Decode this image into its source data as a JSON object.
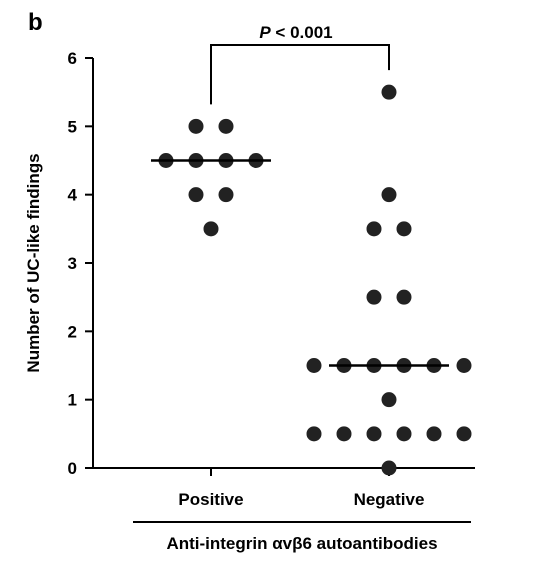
{
  "chart_data": {
    "type": "scatter",
    "panel_label": "b",
    "ylabel": "Number of UC-like findings",
    "xlabel": "",
    "ylim": [
      0,
      6
    ],
    "yticks": [
      "0",
      "1",
      "2",
      "3",
      "4",
      "5",
      "6"
    ],
    "categories": [
      "Positive",
      "Negative"
    ],
    "group_label": "Anti-integrin αvβ6 autoantibodies",
    "significance": {
      "p_symbol": "P",
      "p_rest": " < 0.001"
    },
    "series": [
      {
        "values": [
          3.5,
          4,
          4,
          4.5,
          4.5,
          4.5,
          4.5,
          5,
          5
        ],
        "median": 4.5
      },
      {
        "values": [
          0,
          0.5,
          0.5,
          0.5,
          0.5,
          0.5,
          0.5,
          1,
          1.5,
          1.5,
          1.5,
          1.5,
          1.5,
          1.5,
          2.5,
          2.5,
          3.5,
          3.5,
          4,
          5.5
        ],
        "median": 1.5
      }
    ],
    "colors": {
      "points": "#222222",
      "axis": "#000000"
    }
  }
}
